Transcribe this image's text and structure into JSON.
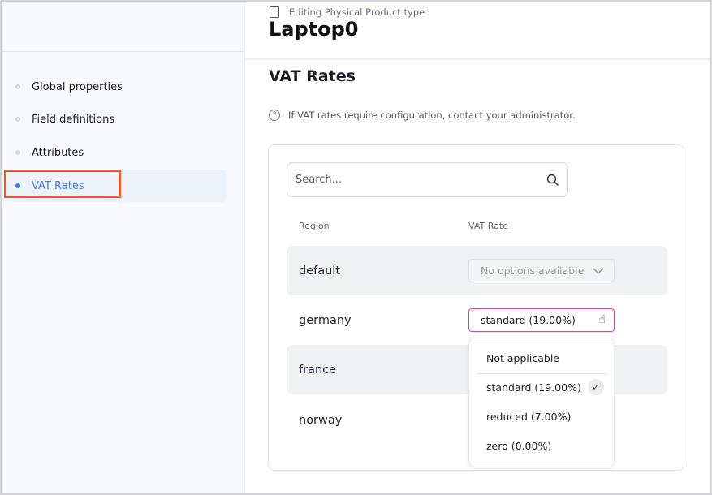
{
  "sidebar": {
    "items": [
      {
        "label": "Global properties",
        "active": false
      },
      {
        "label": "Field definitions",
        "active": false
      },
      {
        "label": "Attributes",
        "active": false
      },
      {
        "label": "VAT Rates",
        "active": true
      }
    ]
  },
  "header": {
    "subtitle": "Editing Physical Product type",
    "title": "Laptop0"
  },
  "section": {
    "title": "VAT Rates",
    "info": "If VAT rates require configuration, contact your administrator."
  },
  "search": {
    "placeholder": "Search..."
  },
  "table": {
    "columns": [
      "Region",
      "VAT Rate"
    ],
    "rows": [
      {
        "region": "default",
        "vat": "No options available"
      },
      {
        "region": "germany",
        "vat": "standard (19.00%)"
      },
      {
        "region": "france",
        "vat": ""
      },
      {
        "region": "norway",
        "vat": ""
      }
    ]
  },
  "dropdown": {
    "options": [
      "Not applicable",
      "standard (19.00%)",
      "reduced (7.00%)",
      "zero (0.00%)"
    ],
    "selected": "standard (19.00%)"
  },
  "colors": {
    "accent": "#3d7bf0",
    "highlight": "#f0572a",
    "focus_border": "#d64a8a"
  }
}
